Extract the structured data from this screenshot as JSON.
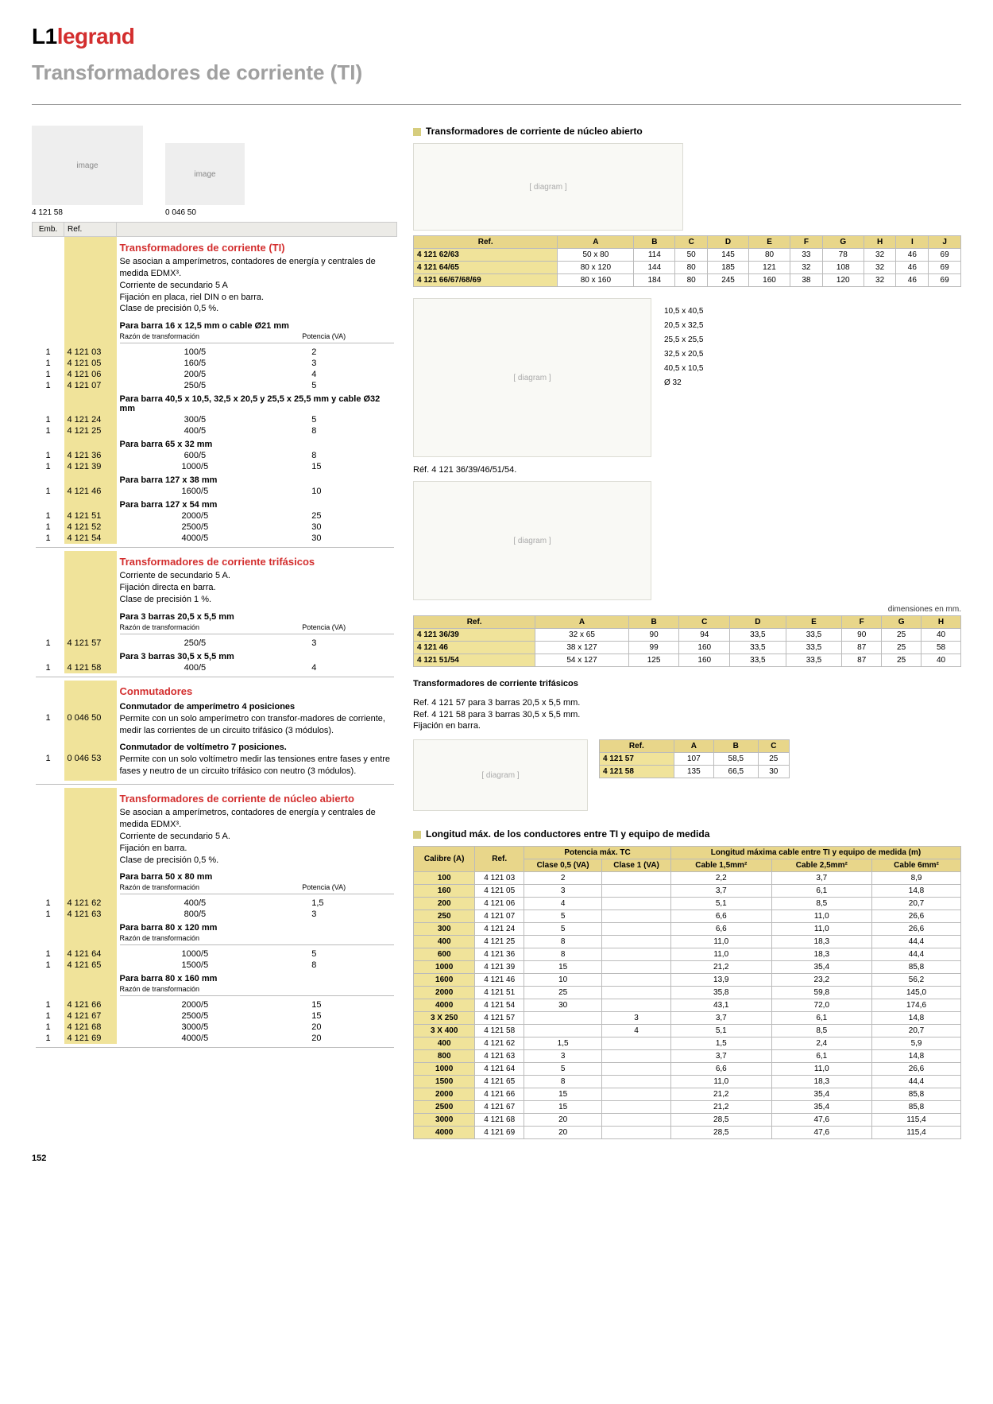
{
  "brand_prefix": "L1",
  "brand": "legrand",
  "title": "Transformadores de corriente (TI)",
  "page_num": "152",
  "img_caps": [
    "4 121 58",
    "0 046 50"
  ],
  "left": {
    "head": [
      "Emb.",
      "Ref."
    ],
    "sections": [
      {
        "title": "Transformadores de corriente (TI)",
        "desc": "Se asocian a amperímetros, contadores de energía y centrales de medida EDMX³.\nCorriente de secundario 5 A\nFijación en placa, riel DIN o en barra.\nClase de precisión 0,5 %.",
        "groups": [
          {
            "sub": "Para barra 16 x 12,5 mm o cable Ø21 mm",
            "mini": [
              "Razón de transformación",
              "Potencia (VA)"
            ],
            "rows": [
              {
                "emb": "1",
                "ref": "4 121 03",
                "a": "100/5",
                "b": "2"
              },
              {
                "emb": "1",
                "ref": "4 121 05",
                "a": "160/5",
                "b": "3"
              },
              {
                "emb": "1",
                "ref": "4 121 06",
                "a": "200/5",
                "b": "4"
              },
              {
                "emb": "1",
                "ref": "4 121 07",
                "a": "250/5",
                "b": "5"
              }
            ]
          },
          {
            "sub": "Para barra 40,5 x 10,5, 32,5 x 20,5 y 25,5 x 25,5 mm y cable Ø32 mm",
            "rows": [
              {
                "emb": "1",
                "ref": "4 121 24",
                "a": "300/5",
                "b": "5"
              },
              {
                "emb": "1",
                "ref": "4 121 25",
                "a": "400/5",
                "b": "8"
              }
            ]
          },
          {
            "sub": "Para barra 65 x 32 mm",
            "rows": [
              {
                "emb": "1",
                "ref": "4 121 36",
                "a": "600/5",
                "b": "8"
              },
              {
                "emb": "1",
                "ref": "4 121 39",
                "a": "1000/5",
                "b": "15"
              }
            ]
          },
          {
            "sub": "Para barra 127 x 38 mm",
            "rows": [
              {
                "emb": "1",
                "ref": "4 121 46",
                "a": "1600/5",
                "b": "10"
              }
            ]
          },
          {
            "sub": "Para barra 127 x 54 mm",
            "rows": [
              {
                "emb": "1",
                "ref": "4 121 51",
                "a": "2000/5",
                "b": "25"
              },
              {
                "emb": "1",
                "ref": "4 121 52",
                "a": "2500/5",
                "b": "30"
              },
              {
                "emb": "1",
                "ref": "4 121 54",
                "a": "4000/5",
                "b": "30"
              }
            ]
          }
        ]
      },
      {
        "title": "Transformadores de corriente trifásicos",
        "desc": "Corriente de secundario 5 A.\nFijación directa en barra.\nClase de precisión 1 %.",
        "groups": [
          {
            "sub": "Para 3 barras 20,5 x 5,5 mm",
            "mini": [
              "Razón de transformación",
              "Potencia (VA)"
            ],
            "rows": [
              {
                "emb": "1",
                "ref": "4 121 57",
                "a": "250/5",
                "b": "3"
              }
            ]
          },
          {
            "sub": "Para 3 barras 30,5 x 5,5 mm",
            "rows": [
              {
                "emb": "1",
                "ref": "4 121 58",
                "a": "400/5",
                "b": "4"
              }
            ]
          }
        ]
      },
      {
        "title": "Conmutadores",
        "desc": "",
        "groups": [
          {
            "sub": "Conmutador de amperímetro 4 posiciones",
            "rows": [
              {
                "emb": "1",
                "ref": "0 046 50",
                "text": "Permite con un solo amperímetro con transfor-madores de corriente, medir las corrientes de un circuito trifásico (3 módulos)."
              }
            ]
          },
          {
            "sub": "Conmutador de voltímetro 7 posiciones.",
            "rows": [
              {
                "emb": "1",
                "ref": "0 046 53",
                "text": "Permite con un solo voltímetro medir las tensiones entre fases y entre fases y neutro de un circuito trifásico con neutro (3 módulos)."
              }
            ]
          }
        ]
      },
      {
        "title": "Transformadores de corriente de núcleo abierto",
        "desc": "Se asocian a amperímetros, contadores de energía y centrales de medida EDMX³.\nCorriente de secundario 5 A.\nFijación en barra.\nClase de precisión 0,5 %.",
        "groups": [
          {
            "sub": "Para barra 50 x 80 mm",
            "mini": [
              "Razón de transformación",
              "Potencia (VA)"
            ],
            "rows": [
              {
                "emb": "1",
                "ref": "4 121 62",
                "a": "400/5",
                "b": "1,5"
              },
              {
                "emb": "1",
                "ref": "4 121 63",
                "a": "800/5",
                "b": "3"
              }
            ]
          },
          {
            "sub": "Para barra 80 x 120 mm",
            "mini": [
              "Razón de transformación",
              ""
            ],
            "rows": [
              {
                "emb": "1",
                "ref": "4 121 64",
                "a": "1000/5",
                "b": "5"
              },
              {
                "emb": "1",
                "ref": "4 121 65",
                "a": "1500/5",
                "b": "8"
              }
            ]
          },
          {
            "sub": "Para barra 80 x 160 mm",
            "mini": [
              "Razón de transformación",
              ""
            ],
            "rows": [
              {
                "emb": "1",
                "ref": "4 121 66",
                "a": "2000/5",
                "b": "15"
              },
              {
                "emb": "1",
                "ref": "4 121 67",
                "a": "2500/5",
                "b": "15"
              },
              {
                "emb": "1",
                "ref": "4 121 68",
                "a": "3000/5",
                "b": "20"
              },
              {
                "emb": "1",
                "ref": "4 121 69",
                "a": "4000/5",
                "b": "20"
              }
            ]
          }
        ]
      }
    ]
  },
  "right": {
    "open_core": {
      "title": "Transformadores de corriente de núcleo abierto",
      "cols": [
        "Ref.",
        "A",
        "B",
        "C",
        "D",
        "E",
        "F",
        "G",
        "H",
        "I",
        "J"
      ],
      "rows": [
        [
          "4 121 62/63",
          "50 x 80",
          "114",
          "50",
          "145",
          "80",
          "33",
          "78",
          "32",
          "46",
          "69"
        ],
        [
          "4 121 64/65",
          "80 x 120",
          "144",
          "80",
          "185",
          "121",
          "32",
          "108",
          "32",
          "46",
          "69"
        ],
        [
          "4 121 66/67/68/69",
          "80 x 160",
          "184",
          "80",
          "245",
          "160",
          "38",
          "120",
          "32",
          "46",
          "69"
        ]
      ]
    },
    "shape_note": "Réf. 4 121 36/39/46/51/54.",
    "dims_note": "dimensiones en mm.",
    "closed": {
      "cols": [
        "Ref.",
        "A",
        "B",
        "C",
        "D",
        "E",
        "F",
        "G",
        "H"
      ],
      "rows": [
        [
          "4 121 36/39",
          "32 x 65",
          "90",
          "94",
          "33,5",
          "33,5",
          "90",
          "25",
          "40"
        ],
        [
          "4 121 46",
          "38 x 127",
          "99",
          "160",
          "33,5",
          "33,5",
          "87",
          "25",
          "58"
        ],
        [
          "4 121 51/54",
          "54 x 127",
          "125",
          "160",
          "33,5",
          "33,5",
          "87",
          "25",
          "40"
        ]
      ]
    },
    "tri": {
      "title": "Transformadores de corriente trifásicos",
      "note": "Ref. 4 121 57 para 3 barras 20,5 x 5,5 mm.\nRef. 4 121 58 para 3 barras 30,5 x 5,5 mm.\nFijación en barra.",
      "cols": [
        "Ref.",
        "A",
        "B",
        "C"
      ],
      "rows": [
        [
          "4 121 57",
          "107",
          "58,5",
          "25"
        ],
        [
          "4 121 58",
          "135",
          "66,5",
          "30"
        ]
      ]
    },
    "cable": {
      "title": "Longitud máx. de los conductores entre TI y equipo de medida",
      "head1": [
        "Calibre (A)",
        "Ref.",
        "Potencia máx. TC",
        "Longitud máxima cable entre TI y equipo de medida (m)"
      ],
      "head2": [
        "Clase 0,5 (VA)",
        "Clase 1 (VA)",
        "Cable 1,5mm²",
        "Cable 2,5mm²",
        "Cable 6mm²"
      ],
      "rows": [
        [
          "100",
          "4 121 03",
          "2",
          "",
          "2,2",
          "3,7",
          "8,9"
        ],
        [
          "160",
          "4 121 05",
          "3",
          "",
          "3,7",
          "6,1",
          "14,8"
        ],
        [
          "200",
          "4 121 06",
          "4",
          "",
          "5,1",
          "8,5",
          "20,7"
        ],
        [
          "250",
          "4 121 07",
          "5",
          "",
          "6,6",
          "11,0",
          "26,6"
        ],
        [
          "300",
          "4 121 24",
          "5",
          "",
          "6,6",
          "11,0",
          "26,6"
        ],
        [
          "400",
          "4 121 25",
          "8",
          "",
          "11,0",
          "18,3",
          "44,4"
        ],
        [
          "600",
          "4 121 36",
          "8",
          "",
          "11,0",
          "18,3",
          "44,4"
        ],
        [
          "1000",
          "4 121 39",
          "15",
          "",
          "21,2",
          "35,4",
          "85,8"
        ],
        [
          "1600",
          "4 121 46",
          "10",
          "",
          "13,9",
          "23,2",
          "56,2"
        ],
        [
          "2000",
          "4 121 51",
          "25",
          "",
          "35,8",
          "59,8",
          "145,0"
        ],
        [
          "4000",
          "4 121 54",
          "30",
          "",
          "43,1",
          "72,0",
          "174,6"
        ],
        [
          "3 X 250",
          "4 121 57",
          "",
          "3",
          "3,7",
          "6,1",
          "14,8"
        ],
        [
          "3 X 400",
          "4 121 58",
          "",
          "4",
          "5,1",
          "8,5",
          "20,7"
        ],
        [
          "400",
          "4 121 62",
          "1,5",
          "",
          "1,5",
          "2,4",
          "5,9"
        ],
        [
          "800",
          "4 121 63",
          "3",
          "",
          "3,7",
          "6,1",
          "14,8"
        ],
        [
          "1000",
          "4 121 64",
          "5",
          "",
          "6,6",
          "11,0",
          "26,6"
        ],
        [
          "1500",
          "4 121 65",
          "8",
          "",
          "11,0",
          "18,3",
          "44,4"
        ],
        [
          "2000",
          "4 121 66",
          "15",
          "",
          "21,2",
          "35,4",
          "85,8"
        ],
        [
          "2500",
          "4 121 67",
          "15",
          "",
          "21,2",
          "35,4",
          "85,8"
        ],
        [
          "3000",
          "4 121 68",
          "20",
          "",
          "28,5",
          "47,6",
          "115,4"
        ],
        [
          "4000",
          "4 121 69",
          "20",
          "",
          "28,5",
          "47,6",
          "115,4"
        ]
      ]
    }
  }
}
